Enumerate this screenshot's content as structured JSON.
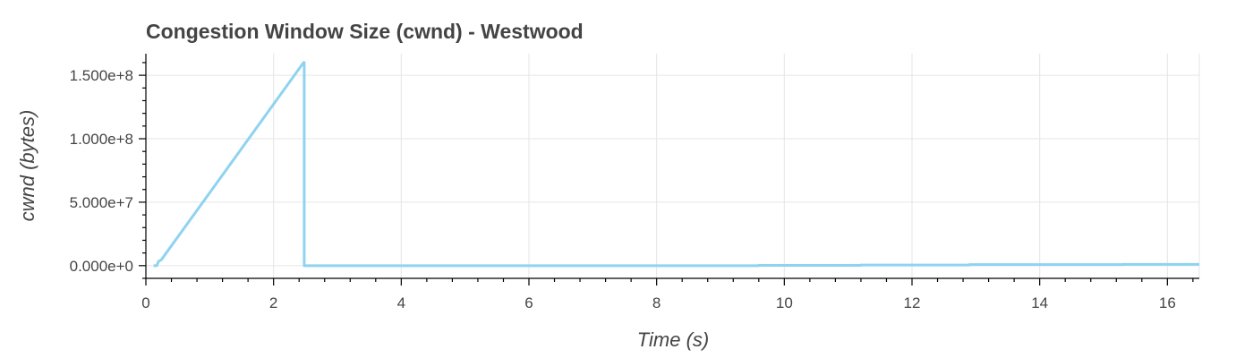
{
  "chart_data": {
    "type": "line",
    "title": "Congestion Window Size (cwnd) - Westwood",
    "xlabel": "Time (s)",
    "ylabel": "cwnd (bytes)",
    "xlim": [
      0,
      16.5
    ],
    "ylim": [
      -10000000,
      167000000
    ],
    "xticks": [
      0,
      2,
      4,
      6,
      8,
      10,
      12,
      14,
      16
    ],
    "xtick_labels": [
      "0",
      "2",
      "4",
      "6",
      "8",
      "10",
      "12",
      "14",
      "16"
    ],
    "yticks": [
      0,
      50000000,
      100000000,
      150000000
    ],
    "ytick_labels": [
      "0.000e+0",
      "5.000e+7",
      "1.000e+8",
      "1.500e+8"
    ],
    "grid": true,
    "series": [
      {
        "color": "#8fd3f0",
        "points": [
          [
            0.12,
            0
          ],
          [
            0.17,
            0
          ],
          [
            0.2,
            3500000
          ],
          [
            0.24,
            4500000
          ],
          [
            2.47,
            160000000
          ],
          [
            2.48,
            160000000
          ],
          [
            2.48,
            0
          ],
          [
            5.0,
            0
          ],
          [
            8.0,
            0
          ],
          [
            9.6,
            0
          ],
          [
            9.6,
            200000
          ],
          [
            11.2,
            200000
          ],
          [
            11.2,
            500000
          ],
          [
            12.9,
            500000
          ],
          [
            12.9,
            800000
          ],
          [
            15.3,
            800000
          ],
          [
            15.3,
            1000000
          ],
          [
            16.5,
            1000000
          ]
        ]
      }
    ]
  }
}
